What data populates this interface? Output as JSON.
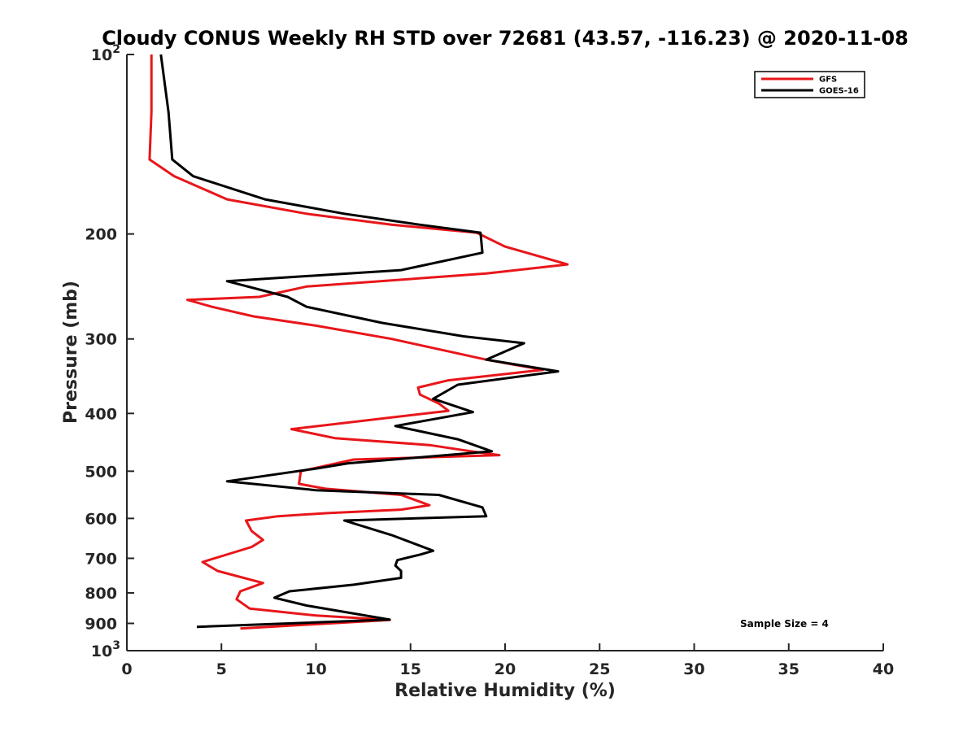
{
  "chart_data": {
    "type": "line",
    "title": "Cloudy CONUS Weekly RH STD over 72681 (43.57, -116.23) @ 2020-11-08",
    "xlabel": "Relative Humidity (%)",
    "ylabel": "Pressure (mb)",
    "xlim": [
      0,
      40
    ],
    "ylim": [
      100,
      1000
    ],
    "y_scale": "log",
    "y_reversed": true,
    "grid": false,
    "legend_position": "top-right",
    "x_ticks": [
      "0",
      "5",
      "10",
      "15",
      "20",
      "25",
      "30",
      "35",
      "40"
    ],
    "y_ticks": [
      {
        "value": 100,
        "base": "10",
        "exp": "2"
      },
      {
        "value": 200,
        "label": "200"
      },
      {
        "value": 300,
        "label": "300"
      },
      {
        "value": 400,
        "label": "400"
      },
      {
        "value": 500,
        "label": "500"
      },
      {
        "value": 600,
        "label": "600"
      },
      {
        "value": 700,
        "label": "700"
      },
      {
        "value": 800,
        "label": "800"
      },
      {
        "value": 900,
        "label": "900"
      },
      {
        "value": 1000,
        "base": "10",
        "exp": "3"
      }
    ],
    "series": [
      {
        "name": "GFS",
        "color": "#e8161a",
        "points": [
          [
            1.3,
            100
          ],
          [
            1.3,
            125
          ],
          [
            1.2,
            150
          ],
          [
            2.5,
            160
          ],
          [
            5.3,
            175
          ],
          [
            9.5,
            185
          ],
          [
            14,
            193
          ],
          [
            18.5,
            199
          ],
          [
            20,
            210
          ],
          [
            23.3,
            225
          ],
          [
            19,
            233
          ],
          [
            9.5,
            245
          ],
          [
            7,
            255
          ],
          [
            3.2,
            258
          ],
          [
            4.5,
            265
          ],
          [
            6.7,
            275
          ],
          [
            10,
            285
          ],
          [
            14,
            300
          ],
          [
            19,
            325
          ],
          [
            22,
            338
          ],
          [
            17,
            352
          ],
          [
            15.4,
            362
          ],
          [
            15.5,
            372
          ],
          [
            16.5,
            385
          ],
          [
            17,
            396
          ],
          [
            8.7,
            425
          ],
          [
            11,
            440
          ],
          [
            16,
            452
          ],
          [
            18,
            462
          ],
          [
            19.7,
            470
          ],
          [
            12,
            478
          ],
          [
            9.2,
            500
          ],
          [
            9.1,
            525
          ],
          [
            10.5,
            535
          ],
          [
            14.5,
            548
          ],
          [
            16,
            570
          ],
          [
            14.5,
            580
          ],
          [
            10.5,
            588
          ],
          [
            8,
            595
          ],
          [
            6.3,
            605
          ],
          [
            6.6,
            630
          ],
          [
            7.2,
            652
          ],
          [
            6.6,
            670
          ],
          [
            4,
            710
          ],
          [
            4.8,
            735
          ],
          [
            7.2,
            770
          ],
          [
            6,
            795
          ],
          [
            5.8,
            820
          ],
          [
            6.5,
            850
          ],
          [
            10,
            873
          ],
          [
            13.9,
            888
          ],
          [
            6,
            918
          ]
        ]
      },
      {
        "name": "GOES-16",
        "color": "#000000",
        "points": [
          [
            1.8,
            100
          ],
          [
            2.2,
            125
          ],
          [
            2.4,
            150
          ],
          [
            3.5,
            160
          ],
          [
            7.3,
            175
          ],
          [
            11.5,
            185
          ],
          [
            15.5,
            193
          ],
          [
            18.7,
            199
          ],
          [
            18.8,
            215
          ],
          [
            14.5,
            230
          ],
          [
            5.3,
            240
          ],
          [
            8.5,
            255
          ],
          [
            9.5,
            265
          ],
          [
            13.5,
            282
          ],
          [
            17.8,
            297
          ],
          [
            21,
            305
          ],
          [
            19,
            325
          ],
          [
            22.8,
            340
          ],
          [
            17.5,
            358
          ],
          [
            16.2,
            378
          ],
          [
            18.3,
            398
          ],
          [
            14.2,
            420
          ],
          [
            17.5,
            442
          ],
          [
            19.3,
            463
          ],
          [
            11.7,
            485
          ],
          [
            10,
            495
          ],
          [
            5.3,
            520
          ],
          [
            10,
            538
          ],
          [
            16.5,
            548
          ],
          [
            18.8,
            575
          ],
          [
            19,
            595
          ],
          [
            11.5,
            605
          ],
          [
            14,
            640
          ],
          [
            16.2,
            680
          ],
          [
            15.5,
            690
          ],
          [
            14.3,
            705
          ],
          [
            14.2,
            720
          ],
          [
            14.5,
            735
          ],
          [
            14.5,
            755
          ],
          [
            12,
            775
          ],
          [
            8.6,
            795
          ],
          [
            7.8,
            815
          ],
          [
            9.5,
            840
          ],
          [
            13.9,
            887
          ],
          [
            3.7,
            912
          ]
        ]
      }
    ],
    "annotation": "Sample Size = 4"
  }
}
